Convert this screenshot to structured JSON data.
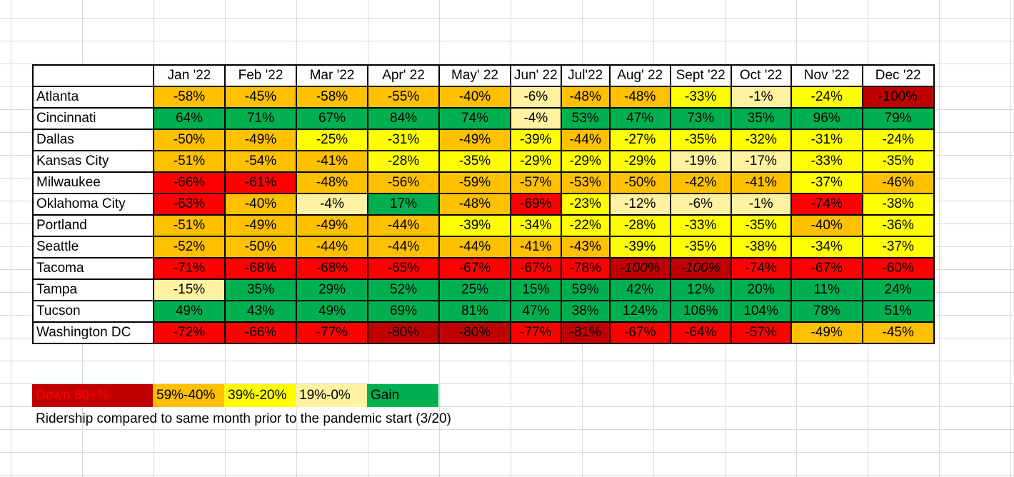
{
  "colors": {
    "down80": "#c00000",
    "down60": "#ff0000",
    "down40": "#ffc000",
    "down20": "#ffff00",
    "down0": "#fff2a0",
    "gain": "#00b050",
    "text_dark": "#000000",
    "text_red": "#ff0000"
  },
  "chart_data": {
    "type": "table",
    "columns": [
      "",
      "Jan '22",
      "Feb '22",
      "Mar '22",
      "Apr' 22",
      "May' 22",
      "Jun' 22",
      "Jul'22",
      "Aug' 22",
      "Sept '22",
      "Oct '22",
      "Nov '22",
      "Dec '22"
    ],
    "rows": [
      {
        "city": "Atlanta",
        "values": [
          -58,
          -45,
          -58,
          -55,
          -40,
          -6,
          -48,
          -48,
          -33,
          -1,
          -24,
          -100
        ],
        "labels": [
          "-58%",
          "-45%",
          "-58%",
          "-55%",
          "-40%",
          "-6%",
          "-48%",
          "-48%",
          "-33%",
          "-1%",
          "-24%",
          "-100%"
        ]
      },
      {
        "city": "Cincinnati",
        "values": [
          64,
          71,
          67,
          84,
          74,
          -4,
          53,
          47,
          73,
          35,
          96,
          79
        ],
        "labels": [
          "64%",
          "71%",
          "67%",
          "84%",
          "74%",
          "-4%",
          "53%",
          "47%",
          "73%",
          "35%",
          "96%",
          "79%"
        ]
      },
      {
        "city": "Dallas",
        "values": [
          -50,
          -49,
          -25,
          -31,
          -49,
          -39,
          -44,
          -27,
          -35,
          -32,
          -31,
          -24
        ],
        "labels": [
          "-50%",
          "-49%",
          "-25%",
          "-31%",
          "-49%",
          "-39%",
          "-44%",
          "-27%",
          "-35%",
          "-32%",
          "-31%",
          "-24%"
        ]
      },
      {
        "city": "Kansas City",
        "values": [
          -51,
          -54,
          -41,
          -28,
          -35,
          -29,
          -29,
          -29,
          -19,
          -17,
          -33,
          -35
        ],
        "labels": [
          "-51%",
          "-54%",
          "-41%",
          "-28%",
          "-35%",
          "-29%",
          "-29%",
          "-29%",
          "-19%",
          "-17%",
          "-33%",
          "-35%"
        ]
      },
      {
        "city": "Milwaukee",
        "values": [
          -66,
          -61,
          -48,
          -56,
          -59,
          -57,
          -53,
          -50,
          -42,
          -41,
          -37,
          -46
        ],
        "labels": [
          "-66%",
          "-61%",
          "-48%",
          "-56%",
          "-59%",
          "-57%",
          "-53%",
          "-50%",
          "-42%",
          "-41%",
          "-37%",
          "-46%"
        ]
      },
      {
        "city": "Oklahoma City",
        "values": [
          -63,
          -40,
          -4,
          17,
          -48,
          -69,
          -23,
          -12,
          -6,
          -1,
          -74,
          -38
        ],
        "labels": [
          "-63%",
          "-40%",
          "-4%",
          "17%",
          "-48%",
          "-69%",
          "-23%",
          "-12%",
          "-6%",
          "-1%",
          "-74%",
          "-38%"
        ]
      },
      {
        "city": "Portland",
        "values": [
          -51,
          -49,
          -49,
          -44,
          -39,
          -34,
          -22,
          -28,
          -33,
          -35,
          -40,
          -36
        ],
        "labels": [
          "-51%",
          "-49%",
          "-49%",
          "-44%",
          "-39%",
          "-34%",
          "-22%",
          "-28%",
          "-33%",
          "-35%",
          "-40%",
          "-36%"
        ]
      },
      {
        "city": "Seattle",
        "values": [
          -52,
          -50,
          -44,
          -44,
          -44,
          -41,
          -43,
          -39,
          -35,
          -38,
          -34,
          -37
        ],
        "labels": [
          "-52%",
          "-50%",
          "-44%",
          "-44%",
          "-44%",
          "-41%",
          "-43%",
          "-39%",
          "-35%",
          "-38%",
          "-34%",
          "-37%"
        ]
      },
      {
        "city": "Tacoma",
        "values": [
          -71,
          -68,
          -68,
          -65,
          -67,
          -67,
          -78,
          -100,
          -100,
          -74,
          -67,
          -60
        ],
        "labels": [
          "-71%",
          "-68%",
          "-68%",
          "-65%",
          "-67%",
          "-67%",
          "-78%",
          "-100%",
          "-100%",
          "-74%",
          "-67%",
          "-60%"
        ]
      },
      {
        "city": "Tampa",
        "values": [
          -15,
          35,
          29,
          52,
          25,
          15,
          59,
          42,
          12,
          20,
          11,
          24
        ],
        "labels": [
          "-15%",
          "35%",
          "29%",
          "52%",
          "25%",
          "15%",
          "59%",
          "42%",
          "12%",
          "20%",
          "11%",
          "24%"
        ]
      },
      {
        "city": "Tucson",
        "values": [
          49,
          43,
          49,
          69,
          81,
          47,
          38,
          124,
          106,
          104,
          78,
          51
        ],
        "labels": [
          "49%",
          "43%",
          "49%",
          "69%",
          "81%",
          "47%",
          "38%",
          "124%",
          "106%",
          "104%",
          "78%",
          "51%"
        ]
      },
      {
        "city": "Washington DC",
        "values": [
          -72,
          -66,
          -77,
          -80,
          -80,
          -77,
          -81,
          -67,
          -64,
          -57,
          -49,
          -45
        ],
        "labels": [
          "-72%",
          "-66%",
          "-77%",
          "-80%",
          "-80%",
          "-77%",
          "-81%",
          "-67%",
          "-64%",
          "-57%",
          "-49%",
          "-45%"
        ]
      }
    ],
    "cell_colors": [
      [
        "down40",
        "down40",
        "down40",
        "down40",
        "down40",
        "down0",
        "down40",
        "down40",
        "down20",
        "down0",
        "down20",
        "down80"
      ],
      [
        "gain",
        "gain",
        "gain",
        "gain",
        "gain",
        "down0",
        "gain",
        "gain",
        "gain",
        "gain",
        "gain",
        "gain"
      ],
      [
        "down40",
        "down40",
        "down20",
        "down20",
        "down40",
        "down20",
        "down40",
        "down20",
        "down20",
        "down20",
        "down20",
        "down20"
      ],
      [
        "down40",
        "down40",
        "down40",
        "down20",
        "down20",
        "down20",
        "down20",
        "down20",
        "down0",
        "down0",
        "down20",
        "down20"
      ],
      [
        "down60",
        "down60",
        "down40",
        "down40",
        "down40",
        "down40",
        "down40",
        "down40",
        "down40",
        "down40",
        "down20",
        "down40"
      ],
      [
        "down60",
        "down40",
        "down0",
        "gain",
        "down40",
        "down60",
        "down20",
        "down0",
        "down0",
        "down0",
        "down60",
        "down20"
      ],
      [
        "down40",
        "down40",
        "down40",
        "down40",
        "down20",
        "down20",
        "down20",
        "down20",
        "down20",
        "down20",
        "down40",
        "down20"
      ],
      [
        "down40",
        "down40",
        "down40",
        "down40",
        "down40",
        "down40",
        "down40",
        "down20",
        "down20",
        "down20",
        "down20",
        "down20"
      ],
      [
        "down60",
        "down60",
        "down60",
        "down60",
        "down60",
        "down60",
        "down60",
        "down80",
        "down80",
        "down60",
        "down60",
        "down60"
      ],
      [
        "down0",
        "gain",
        "gain",
        "gain",
        "gain",
        "gain",
        "gain",
        "gain",
        "gain",
        "gain",
        "gain",
        "gain"
      ],
      [
        "gain",
        "gain",
        "gain",
        "gain",
        "gain",
        "gain",
        "gain",
        "gain",
        "gain",
        "gain",
        "gain",
        "gain"
      ],
      [
        "down60",
        "down60",
        "down60",
        "down80",
        "down80",
        "down60",
        "down80",
        "down60",
        "down60",
        "down60",
        "down40",
        "down40"
      ]
    ],
    "italic_cells": [
      [
        8,
        7
      ],
      [
        8,
        8
      ]
    ],
    "legend": [
      {
        "label": "Down 80+%",
        "color": "down80",
        "text_color": "text_red"
      },
      {
        "label": "59%-40%",
        "color": "down40",
        "text_color": "text_dark"
      },
      {
        "label": "39%-20%",
        "color": "down20",
        "text_color": "text_dark"
      },
      {
        "label": "19%-0%",
        "color": "down0",
        "text_color": "text_dark"
      },
      {
        "label": "Gain",
        "color": "gain",
        "text_color": "text_dark"
      }
    ],
    "caption": "Ridership compared to same month prior to the pandemic start (3/20)"
  }
}
